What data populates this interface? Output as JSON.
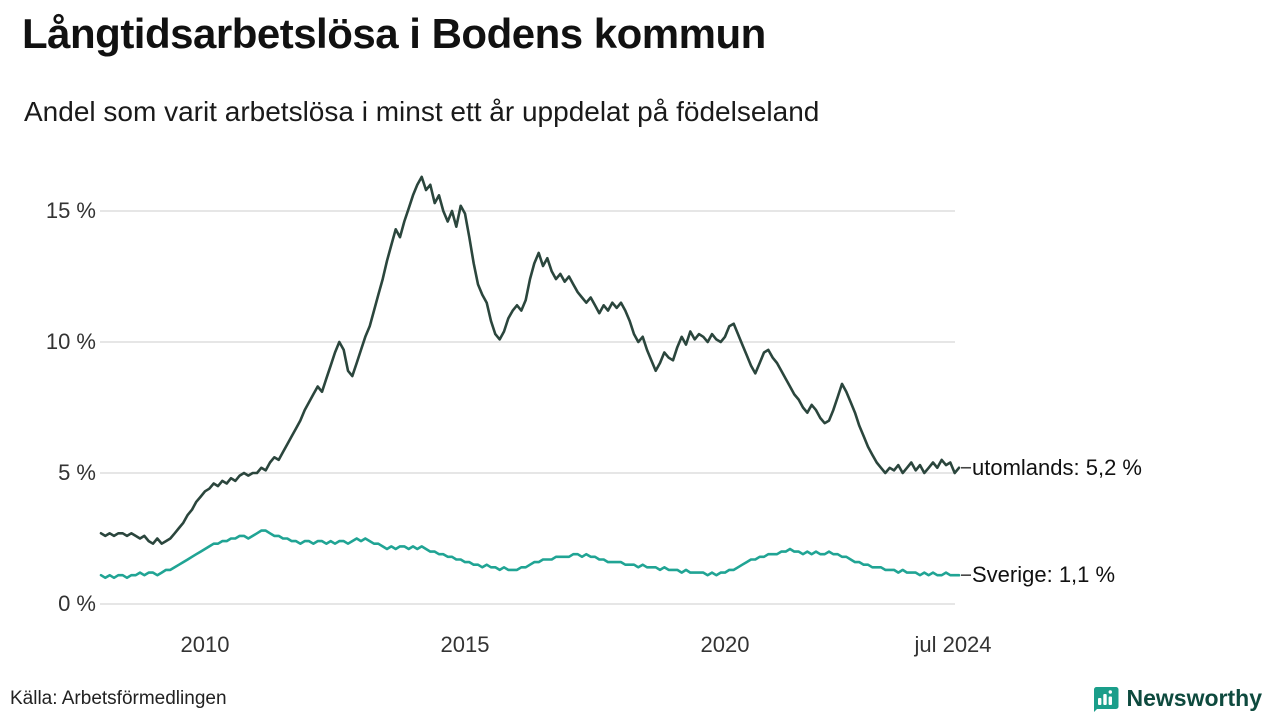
{
  "header": {
    "title": "Långtidsarbetslösa i Bodens kommun",
    "subtitle": "Andel som varit arbetslösa i minst ett år uppdelat på födelseland"
  },
  "footer": {
    "source": "Källa: Arbetsförmedlingen",
    "brand": "Newsworthy"
  },
  "colors": {
    "utomlands": "#2b463d",
    "sverige": "#20a494",
    "grid": "#d8d8d8",
    "end_tick": "#444444",
    "text": "#111111",
    "brand_teal": "#1a9e8a",
    "brand_text": "#0e4a3e"
  },
  "chart_data": {
    "type": "line",
    "title": "Långtidsarbetslösa i Bodens kommun",
    "subtitle": "Andel som varit arbetslösa i minst ett år uppdelat på födelseland",
    "x_unit": "year",
    "x_start": 2008.0,
    "points_per_year": 12,
    "xlim": [
      2008.0,
      2024.58
    ],
    "ylim": [
      0,
      17
    ],
    "grid": "horizontal",
    "legend": "end-labels",
    "yticks": [
      {
        "v": 0,
        "label": "0 %"
      },
      {
        "v": 5,
        "label": "5 %"
      },
      {
        "v": 10,
        "label": "10 %"
      },
      {
        "v": 15,
        "label": "15 %"
      }
    ],
    "xticks": [
      {
        "x": 2010,
        "label": "2010"
      },
      {
        "x": 2015,
        "label": "2015"
      },
      {
        "x": 2020,
        "label": "2020"
      },
      {
        "x": 2024.5,
        "label": "jul 2024"
      }
    ],
    "series": [
      {
        "name": "utomlands",
        "end_label": "utomlands: 5,2 %",
        "end_value": "5,2 %",
        "color": "#2b463d",
        "values": [
          2.7,
          2.6,
          2.7,
          2.6,
          2.7,
          2.7,
          2.6,
          2.7,
          2.6,
          2.5,
          2.6,
          2.4,
          2.3,
          2.5,
          2.3,
          2.4,
          2.5,
          2.7,
          2.9,
          3.1,
          3.4,
          3.6,
          3.9,
          4.1,
          4.3,
          4.4,
          4.6,
          4.5,
          4.7,
          4.6,
          4.8,
          4.7,
          4.9,
          5.0,
          4.9,
          5.0,
          5.0,
          5.2,
          5.1,
          5.4,
          5.6,
          5.5,
          5.8,
          6.1,
          6.4,
          6.7,
          7.0,
          7.4,
          7.7,
          8.0,
          8.3,
          8.1,
          8.6,
          9.1,
          9.6,
          10.0,
          9.7,
          8.9,
          8.7,
          9.2,
          9.7,
          10.2,
          10.6,
          11.2,
          11.8,
          12.4,
          13.1,
          13.7,
          14.3,
          14.0,
          14.6,
          15.1,
          15.6,
          16.0,
          16.3,
          15.8,
          16.0,
          15.3,
          15.6,
          15.0,
          14.6,
          15.0,
          14.4,
          15.2,
          14.9,
          14.0,
          13.0,
          12.2,
          11.8,
          11.5,
          10.8,
          10.3,
          10.1,
          10.4,
          10.9,
          11.2,
          11.4,
          11.2,
          11.6,
          12.4,
          13.0,
          13.4,
          12.9,
          13.2,
          12.7,
          12.4,
          12.6,
          12.3,
          12.5,
          12.2,
          11.9,
          11.7,
          11.5,
          11.7,
          11.4,
          11.1,
          11.4,
          11.2,
          11.5,
          11.3,
          11.5,
          11.2,
          10.8,
          10.3,
          10.0,
          10.2,
          9.7,
          9.3,
          8.9,
          9.2,
          9.6,
          9.4,
          9.3,
          9.8,
          10.2,
          9.9,
          10.4,
          10.1,
          10.3,
          10.2,
          10.0,
          10.3,
          10.1,
          10.0,
          10.2,
          10.6,
          10.7,
          10.3,
          9.9,
          9.5,
          9.1,
          8.8,
          9.2,
          9.6,
          9.7,
          9.4,
          9.2,
          8.9,
          8.6,
          8.3,
          8.0,
          7.8,
          7.5,
          7.3,
          7.6,
          7.4,
          7.1,
          6.9,
          7.0,
          7.4,
          7.9,
          8.4,
          8.1,
          7.7,
          7.3,
          6.8,
          6.4,
          6.0,
          5.7,
          5.4,
          5.2,
          5.0,
          5.2,
          5.1,
          5.3,
          5.0,
          5.2,
          5.4,
          5.1,
          5.3,
          5.0,
          5.2,
          5.4,
          5.2,
          5.5,
          5.3,
          5.4,
          5.0,
          5.2
        ]
      },
      {
        "name": "Sverige",
        "end_label": "Sverige: 1,1 %",
        "end_value": "1,1 %",
        "color": "#20a494",
        "values": [
          1.1,
          1.0,
          1.1,
          1.0,
          1.1,
          1.1,
          1.0,
          1.1,
          1.1,
          1.2,
          1.1,
          1.2,
          1.2,
          1.1,
          1.2,
          1.3,
          1.3,
          1.4,
          1.5,
          1.6,
          1.7,
          1.8,
          1.9,
          2.0,
          2.1,
          2.2,
          2.3,
          2.3,
          2.4,
          2.4,
          2.5,
          2.5,
          2.6,
          2.6,
          2.5,
          2.6,
          2.7,
          2.8,
          2.8,
          2.7,
          2.6,
          2.6,
          2.5,
          2.5,
          2.4,
          2.4,
          2.3,
          2.4,
          2.4,
          2.3,
          2.4,
          2.4,
          2.3,
          2.4,
          2.3,
          2.4,
          2.4,
          2.3,
          2.4,
          2.5,
          2.4,
          2.5,
          2.4,
          2.3,
          2.3,
          2.2,
          2.1,
          2.2,
          2.1,
          2.2,
          2.2,
          2.1,
          2.2,
          2.1,
          2.2,
          2.1,
          2.0,
          2.0,
          1.9,
          1.9,
          1.8,
          1.8,
          1.7,
          1.7,
          1.6,
          1.6,
          1.5,
          1.5,
          1.4,
          1.5,
          1.4,
          1.4,
          1.3,
          1.4,
          1.3,
          1.3,
          1.3,
          1.4,
          1.4,
          1.5,
          1.6,
          1.6,
          1.7,
          1.7,
          1.7,
          1.8,
          1.8,
          1.8,
          1.8,
          1.9,
          1.9,
          1.8,
          1.9,
          1.8,
          1.8,
          1.7,
          1.7,
          1.6,
          1.6,
          1.6,
          1.6,
          1.5,
          1.5,
          1.5,
          1.4,
          1.5,
          1.4,
          1.4,
          1.4,
          1.3,
          1.4,
          1.3,
          1.3,
          1.3,
          1.2,
          1.3,
          1.2,
          1.2,
          1.2,
          1.2,
          1.1,
          1.2,
          1.1,
          1.2,
          1.2,
          1.3,
          1.3,
          1.4,
          1.5,
          1.6,
          1.7,
          1.7,
          1.8,
          1.8,
          1.9,
          1.9,
          1.9,
          2.0,
          2.0,
          2.1,
          2.0,
          2.0,
          1.9,
          2.0,
          1.9,
          2.0,
          1.9,
          1.9,
          2.0,
          1.9,
          1.9,
          1.8,
          1.8,
          1.7,
          1.6,
          1.6,
          1.5,
          1.5,
          1.4,
          1.4,
          1.4,
          1.3,
          1.3,
          1.3,
          1.2,
          1.3,
          1.2,
          1.2,
          1.2,
          1.1,
          1.2,
          1.1,
          1.2,
          1.1,
          1.1,
          1.2,
          1.1,
          1.1,
          1.1
        ]
      }
    ]
  }
}
